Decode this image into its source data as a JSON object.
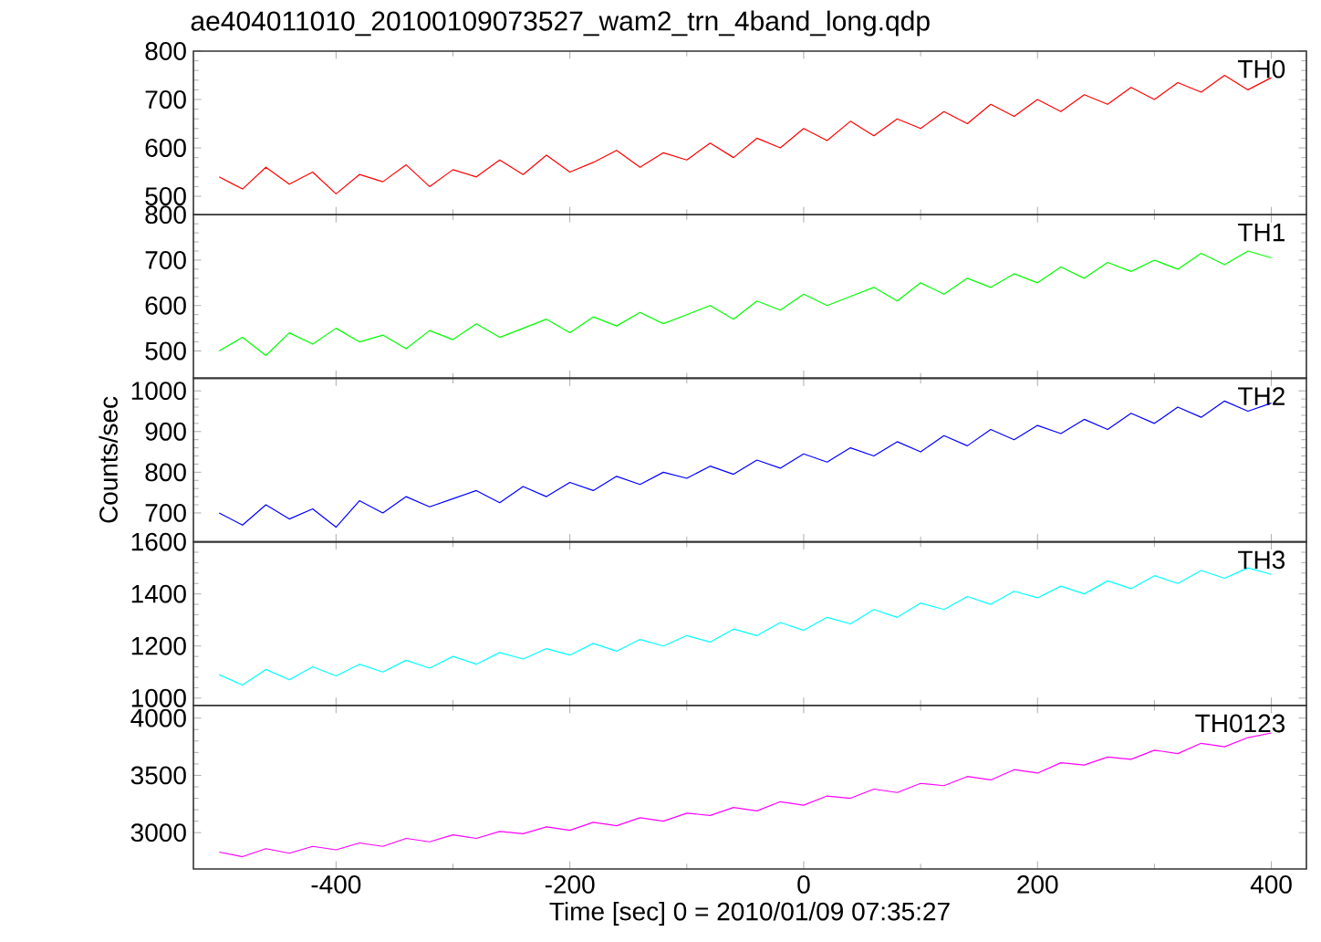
{
  "chart_data": [
    {
      "type": "line",
      "title": "ae404011010_20100109073527_wam2_trn_4band_long.qdp",
      "xlim": [
        -522,
        430
      ],
      "xticks": [
        -400,
        -200,
        0,
        200,
        400
      ],
      "ylim": [
        462,
        800
      ],
      "yticks": [
        500,
        600,
        700,
        800
      ],
      "tick_labels": "y",
      "marker": "none",
      "x": [
        -500,
        -480,
        -460,
        -440,
        -420,
        -400,
        -380,
        -360,
        -340,
        -320,
        -300,
        -280,
        -260,
        -240,
        -220,
        -200,
        -180,
        -160,
        -140,
        -120,
        -100,
        -80,
        -60,
        -40,
        -20,
        0,
        20,
        40,
        60,
        80,
        100,
        120,
        140,
        160,
        180,
        200,
        220,
        240,
        260,
        280,
        300,
        320,
        340,
        360,
        380,
        400
      ],
      "series": [
        {
          "name": "TH0",
          "color": "#ff0000",
          "values": [
            540,
            515,
            560,
            525,
            550,
            505,
            545,
            530,
            565,
            520,
            555,
            540,
            575,
            545,
            585,
            550,
            570,
            595,
            560,
            590,
            575,
            610,
            580,
            620,
            600,
            640,
            615,
            655,
            625,
            660,
            640,
            675,
            650,
            690,
            665,
            700,
            675,
            710,
            690,
            725,
            700,
            735,
            715,
            750,
            720,
            745
          ]
        }
      ]
    },
    {
      "type": "line",
      "xlim": [
        -522,
        430
      ],
      "xticks": [
        -400,
        -200,
        0,
        200,
        400
      ],
      "ylim": [
        440,
        800
      ],
      "yticks": [
        500,
        600,
        700,
        800
      ],
      "tick_labels": "y",
      "marker": "none",
      "x": [
        -500,
        -480,
        -460,
        -440,
        -420,
        -400,
        -380,
        -360,
        -340,
        -320,
        -300,
        -280,
        -260,
        -240,
        -220,
        -200,
        -180,
        -160,
        -140,
        -120,
        -100,
        -80,
        -60,
        -40,
        -20,
        0,
        20,
        40,
        60,
        80,
        100,
        120,
        140,
        160,
        180,
        200,
        220,
        240,
        260,
        280,
        300,
        320,
        340,
        360,
        380,
        400
      ],
      "series": [
        {
          "name": "TH1",
          "color": "#00ff00",
          "values": [
            500,
            530,
            490,
            540,
            515,
            550,
            520,
            535,
            505,
            545,
            525,
            560,
            530,
            550,
            570,
            540,
            575,
            555,
            585,
            560,
            580,
            600,
            570,
            610,
            590,
            625,
            600,
            620,
            640,
            610,
            650,
            625,
            660,
            640,
            670,
            650,
            685,
            660,
            695,
            675,
            700,
            680,
            715,
            690,
            720,
            705
          ]
        }
      ]
    },
    {
      "type": "line",
      "ylabel": "Counts/sec",
      "xlim": [
        -522,
        430
      ],
      "xticks": [
        -400,
        -200,
        0,
        200,
        400
      ],
      "ylim": [
        629,
        1031
      ],
      "yticks": [
        700,
        800,
        900,
        1000
      ],
      "tick_labels": "y",
      "marker": "none",
      "x": [
        -500,
        -480,
        -460,
        -440,
        -420,
        -400,
        -380,
        -360,
        -340,
        -320,
        -300,
        -280,
        -260,
        -240,
        -220,
        -200,
        -180,
        -160,
        -140,
        -120,
        -100,
        -80,
        -60,
        -40,
        -20,
        0,
        20,
        40,
        60,
        80,
        100,
        120,
        140,
        160,
        180,
        200,
        220,
        240,
        260,
        280,
        300,
        320,
        340,
        360,
        380,
        400
      ],
      "series": [
        {
          "name": "TH2",
          "color": "#0000ff",
          "values": [
            700,
            670,
            720,
            685,
            710,
            665,
            730,
            700,
            740,
            715,
            735,
            755,
            725,
            765,
            740,
            775,
            755,
            790,
            770,
            800,
            785,
            815,
            795,
            830,
            810,
            845,
            825,
            860,
            840,
            875,
            850,
            890,
            865,
            905,
            880,
            915,
            895,
            930,
            905,
            945,
            920,
            960,
            935,
            975,
            950,
            970
          ]
        }
      ]
    },
    {
      "type": "line",
      "xlim": [
        -522,
        430
      ],
      "xticks": [
        -400,
        -200,
        0,
        200,
        400
      ],
      "ylim": [
        972,
        1600
      ],
      "yticks": [
        1000,
        1200,
        1400,
        1600
      ],
      "tick_labels": "y",
      "marker": "none",
      "x": [
        -500,
        -480,
        -460,
        -440,
        -420,
        -400,
        -380,
        -360,
        -340,
        -320,
        -300,
        -280,
        -260,
        -240,
        -220,
        -200,
        -180,
        -160,
        -140,
        -120,
        -100,
        -80,
        -60,
        -40,
        -20,
        0,
        20,
        40,
        60,
        80,
        100,
        120,
        140,
        160,
        180,
        200,
        220,
        240,
        260,
        280,
        300,
        320,
        340,
        360,
        380,
        400
      ],
      "series": [
        {
          "name": "TH3",
          "color": "#00ffff",
          "values": [
            1090,
            1050,
            1110,
            1070,
            1120,
            1085,
            1130,
            1100,
            1145,
            1115,
            1160,
            1130,
            1175,
            1150,
            1190,
            1165,
            1210,
            1180,
            1225,
            1200,
            1240,
            1215,
            1265,
            1240,
            1290,
            1260,
            1310,
            1285,
            1340,
            1310,
            1365,
            1340,
            1390,
            1360,
            1410,
            1385,
            1430,
            1400,
            1450,
            1420,
            1470,
            1440,
            1490,
            1460,
            1500,
            1475
          ]
        }
      ]
    },
    {
      "type": "line",
      "xlabel": "Time [sec] 0 = 2010/01/09 07:35:27",
      "xlim": [
        -522,
        430
      ],
      "xticks": [
        -400,
        -200,
        0,
        200,
        400
      ],
      "ylim": [
        2683,
        4111
      ],
      "yticks": [
        3000,
        3500,
        4000
      ],
      "marker": "none",
      "x": [
        -500,
        -480,
        -460,
        -440,
        -420,
        -400,
        -380,
        -360,
        -340,
        -320,
        -300,
        -280,
        -260,
        -240,
        -220,
        -200,
        -180,
        -160,
        -140,
        -120,
        -100,
        -80,
        -60,
        -40,
        -20,
        0,
        20,
        40,
        60,
        80,
        100,
        120,
        140,
        160,
        180,
        200,
        220,
        240,
        260,
        280,
        300,
        320,
        340,
        360,
        380,
        400
      ],
      "series": [
        {
          "name": "TH0123",
          "color": "#ff00ff",
          "values": [
            2830,
            2790,
            2860,
            2820,
            2880,
            2850,
            2910,
            2880,
            2950,
            2920,
            2980,
            2950,
            3010,
            2990,
            3050,
            3020,
            3090,
            3060,
            3130,
            3100,
            3170,
            3150,
            3220,
            3190,
            3270,
            3240,
            3320,
            3300,
            3380,
            3350,
            3430,
            3410,
            3490,
            3460,
            3550,
            3520,
            3610,
            3590,
            3660,
            3640,
            3720,
            3690,
            3780,
            3750,
            3830,
            3870
          ]
        }
      ]
    }
  ]
}
